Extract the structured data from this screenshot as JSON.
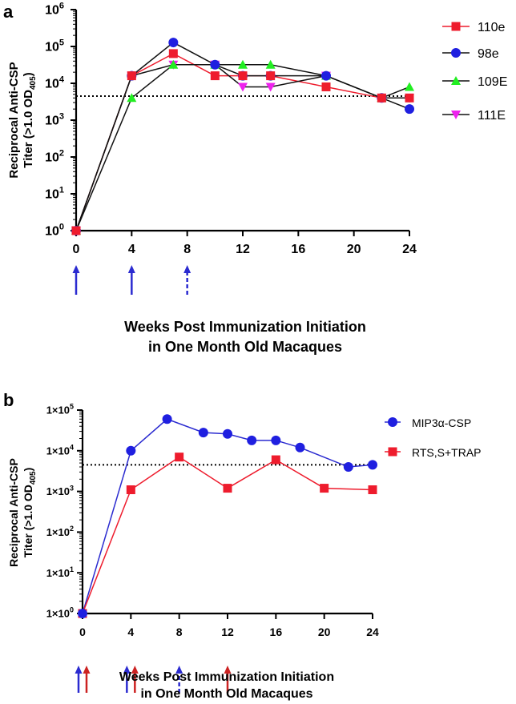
{
  "chart_data": [
    {
      "panel_label": "a",
      "type": "line",
      "yscale": "log",
      "ylabel_line1": "Reciprocal Anti-CSP",
      "ylabel_line2_pre": "Titer (>1.0 OD",
      "ylabel_line2_sub": "405",
      "ylabel_line2_post": ")",
      "xlabel_line1": "Weeks Post Immunization Initiation",
      "xlabel_line2": "in One Month Old Macaques",
      "xlim": [
        0,
        24
      ],
      "ylim": [
        1,
        1000000
      ],
      "xticks": [
        0,
        4,
        8,
        12,
        16,
        20,
        24
      ],
      "yticks": [
        {
          "value": 1,
          "base": "10",
          "exp": "0"
        },
        {
          "value": 10,
          "base": "10",
          "exp": "1"
        },
        {
          "value": 100,
          "base": "10",
          "exp": "2"
        },
        {
          "value": 1000,
          "base": "10",
          "exp": "3"
        },
        {
          "value": 10000,
          "base": "10",
          "exp": "4"
        },
        {
          "value": 100000,
          "base": "10",
          "exp": "5"
        },
        {
          "value": 1000000,
          "base": "10",
          "exp": "6"
        }
      ],
      "threshold": 4500,
      "series": [
        {
          "name": "110e",
          "marker": "square",
          "color": "#ee1c2d",
          "line_color": "#ee1c2d",
          "x": [
            0,
            4,
            7,
            10,
            12,
            14,
            18,
            22,
            24
          ],
          "y": [
            1,
            16000,
            64000,
            16000,
            16000,
            16000,
            8000,
            4000,
            4000
          ]
        },
        {
          "name": "98e",
          "marker": "circle",
          "color": "#1f1fe0",
          "line_color": "#111111",
          "x": [
            0,
            4,
            7,
            10,
            12,
            14,
            18,
            22,
            24
          ],
          "y": [
            1,
            16000,
            128000,
            32000,
            16000,
            16000,
            16000,
            4000,
            2000
          ]
        },
        {
          "name": "109E",
          "marker": "triangle-up",
          "color": "#22ee22",
          "line_color": "#111111",
          "x": [
            0,
            4,
            7,
            10,
            12,
            14,
            18,
            22,
            24
          ],
          "y": [
            1,
            4000,
            32000,
            32000,
            32000,
            32000,
            16000,
            4000,
            8000
          ]
        },
        {
          "name": "111E",
          "marker": "triangle-down",
          "color": "#ee22ee",
          "line_color": "#111111",
          "x": [
            0,
            4,
            7,
            10,
            12,
            14,
            18,
            22,
            24
          ],
          "y": [
            1,
            16000,
            32000,
            32000,
            8000,
            8000,
            16000,
            4000,
            4000
          ]
        }
      ],
      "arrows": [
        {
          "week": 0,
          "color": "#2b2bd0",
          "style": "solid"
        },
        {
          "week": 4,
          "color": "#2b2bd0",
          "style": "solid"
        },
        {
          "week": 8,
          "color": "#2b2bd0",
          "style": "dashed"
        }
      ]
    },
    {
      "panel_label": "b",
      "type": "line",
      "yscale": "log",
      "ylabel_line1": "Reciprocal Anti-CSP",
      "ylabel_line2_pre": "Titer (>1.0 OD",
      "ylabel_line2_sub": "405",
      "ylabel_line2_post": ")",
      "xlabel_line1": "Weeks Post Immunization Initiation",
      "xlabel_line2": "in One Month Old Macaques",
      "xlim": [
        0,
        24
      ],
      "ylim": [
        1,
        100000
      ],
      "xticks": [
        0,
        4,
        8,
        12,
        16,
        20,
        24
      ],
      "yticks": [
        {
          "value": 1,
          "base": "1×10",
          "exp": "0"
        },
        {
          "value": 10,
          "base": "1×10",
          "exp": "1"
        },
        {
          "value": 100,
          "base": "1×10",
          "exp": "2"
        },
        {
          "value": 1000,
          "base": "1×10",
          "exp": "3"
        },
        {
          "value": 10000,
          "base": "1×10",
          "exp": "4"
        },
        {
          "value": 100000,
          "base": "1×10",
          "exp": "5"
        }
      ],
      "threshold": 4500,
      "series": [
        {
          "name": "MIP3α-CSP",
          "marker": "circle",
          "color": "#1f1fe0",
          "line_color": "#2b2bd0",
          "x": [
            0,
            4,
            7,
            10,
            12,
            14,
            16,
            18,
            22,
            24
          ],
          "y": [
            1,
            10000,
            60000,
            28000,
            26000,
            18000,
            18000,
            12000,
            4000,
            4500
          ]
        },
        {
          "name": "RTS,S+TRAP",
          "marker": "square",
          "color": "#ee1c2d",
          "line_color": "#ee1c2d",
          "x": [
            0,
            4,
            8,
            12,
            16,
            20,
            24
          ],
          "y": [
            1,
            1100,
            7000,
            1200,
            6000,
            1200,
            1100
          ]
        }
      ],
      "arrows": [
        {
          "week": 0,
          "color": "#2b2bd0",
          "style": "solid",
          "offset": -1
        },
        {
          "week": 0,
          "color": "#cc2222",
          "style": "solid",
          "offset": 1
        },
        {
          "week": 4,
          "color": "#2b2bd0",
          "style": "solid",
          "offset": -1
        },
        {
          "week": 4,
          "color": "#cc2222",
          "style": "solid",
          "offset": 1
        },
        {
          "week": 8,
          "color": "#2b2bd0",
          "style": "dashed",
          "offset": 0
        },
        {
          "week": 12,
          "color": "#cc2222",
          "style": "solid",
          "offset": 0
        }
      ]
    }
  ]
}
